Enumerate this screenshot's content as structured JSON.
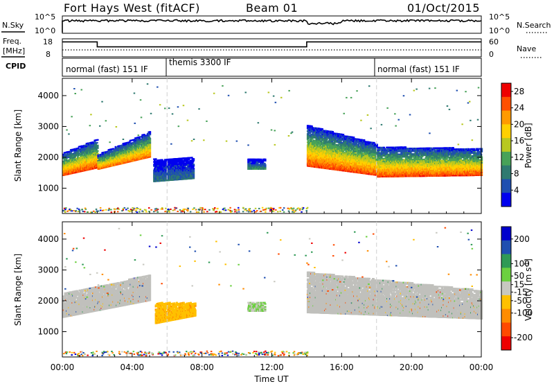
{
  "header": {
    "station": "Fort Hays West (fitACF)",
    "beam": "Beam 01",
    "date": "01/Oct/2015"
  },
  "noise_panel": {
    "left_label": "N.Sky",
    "right_label": "N.Search",
    "tick_top": "10^5",
    "tick_bottom": "10^0"
  },
  "freq_panel": {
    "left_label_1": "Freq.",
    "left_label_2": "[MHz]",
    "right_label": "Nave",
    "left_ticks": [
      "18",
      "8"
    ],
    "right_ticks": [
      "60",
      "0"
    ],
    "freq_levels_mhz": [
      {
        "from": "00:00",
        "to": "02:00",
        "value": 17
      },
      {
        "from": "02:00",
        "to": "14:00",
        "value": 14
      },
      {
        "from": "14:00",
        "to": "24:00",
        "value": 17
      }
    ]
  },
  "cpid": {
    "label": "CPID",
    "segments": [
      {
        "name": "normal (fast) 151 IF",
        "start": "00:00"
      },
      {
        "name": "themis 3300 IF",
        "start": "06:00"
      },
      {
        "name": "normal (fast) 151 IF",
        "start": "18:00"
      }
    ]
  },
  "colors": {
    "power_scale": [
      "#0000ee",
      "#1f4fb0",
      "#2f7a70",
      "#48a258",
      "#b8c820",
      "#ffd000",
      "#ff9a00",
      "#ff5000",
      "#ee0000"
    ],
    "velocity_scale": [
      "#0000cc",
      "#1f4fb0",
      "#2f9a55",
      "#6cd040",
      "#c8c8c0",
      "#ffc000",
      "#ff8c00",
      "#ff4a00",
      "#ee0000"
    ],
    "ground_scatter": "#c0c0bc"
  },
  "chart_data": [
    {
      "type": "heatmap",
      "panel": "power",
      "ylabel": "Slant Range [km]",
      "xlabel": "Time UT",
      "xticks": [
        "00:00",
        "04:00",
        "08:00",
        "12:00",
        "16:00",
        "20:00",
        "00:00"
      ],
      "yticks": [
        1000,
        2000,
        3000,
        4000
      ],
      "xlim_hours": [
        0,
        24
      ],
      "ylim_km": [
        180,
        4560
      ],
      "colorbar": {
        "label": "Power [dB]",
        "ticks": [
          4,
          8,
          12,
          16,
          20,
          24,
          28
        ],
        "range": [
          0,
          30
        ]
      },
      "echo_bands": [
        {
          "t_start": 0.0,
          "t_end": 2.0,
          "range_low_start": 1400,
          "range_low_end": 1650,
          "range_high_start": 2100,
          "range_high_end": 2550,
          "peak_db": 28
        },
        {
          "t_start": 2.0,
          "t_end": 5.0,
          "range_low_start": 1600,
          "range_low_end": 2000,
          "range_high_start": 2050,
          "range_high_end": 2800,
          "peak_db": 26
        },
        {
          "t_start": 5.2,
          "t_end": 7.5,
          "range_low_start": 1200,
          "range_low_end": 1300,
          "range_high_start": 1900,
          "range_high_end": 1950,
          "peak_db": 10
        },
        {
          "t_start": 10.6,
          "t_end": 11.6,
          "range_low_start": 1600,
          "range_low_end": 1600,
          "range_high_start": 1900,
          "range_high_end": 1900,
          "peak_db": 12
        },
        {
          "t_start": 14.0,
          "t_end": 18.0,
          "range_low_start": 1700,
          "range_low_end": 1400,
          "range_high_start": 3000,
          "range_high_end": 2400,
          "peak_db": 28
        },
        {
          "t_start": 18.0,
          "t_end": 24.0,
          "range_low_start": 1350,
          "range_low_end": 1400,
          "range_high_start": 2300,
          "range_high_end": 2250,
          "peak_db": 28
        }
      ]
    },
    {
      "type": "heatmap",
      "panel": "velocity",
      "ylabel": "Slant Range [km]",
      "xlabel": "Time UT",
      "xticks": [
        "00:00",
        "04:00",
        "08:00",
        "12:00",
        "16:00",
        "20:00",
        "00:00"
      ],
      "yticks": [
        1000,
        2000,
        3000,
        4000
      ],
      "xlim_hours": [
        0,
        24
      ],
      "ylim_km": [
        180,
        4560
      ],
      "colorbar": {
        "label": "Velocity [m s^-1]",
        "ticks": [
          200,
          100,
          50,
          15,
          -15,
          -50,
          -100,
          -200
        ],
        "range": [
          -250,
          250
        ]
      },
      "echo_bands": [
        {
          "t_start": 0.0,
          "t_end": 5.0,
          "range_low_start": 1450,
          "range_low_end": 2000,
          "range_high_start": 2200,
          "range_high_end": 2800,
          "velocity": 0,
          "ground_scatter": true
        },
        {
          "t_start": 5.3,
          "t_end": 7.6,
          "range_low_start": 1250,
          "range_low_end": 1500,
          "range_high_start": 1900,
          "range_high_end": 1900,
          "velocity": -60
        },
        {
          "t_start": 10.6,
          "t_end": 11.6,
          "range_low_start": 1650,
          "range_low_end": 1650,
          "range_high_start": 1900,
          "range_high_end": 1900,
          "velocity": 30
        },
        {
          "t_start": 14.0,
          "t_end": 24.0,
          "range_low_start": 1600,
          "range_low_end": 1400,
          "range_high_start": 2900,
          "range_high_end": 2300,
          "velocity": 0,
          "ground_scatter": true
        }
      ]
    }
  ]
}
